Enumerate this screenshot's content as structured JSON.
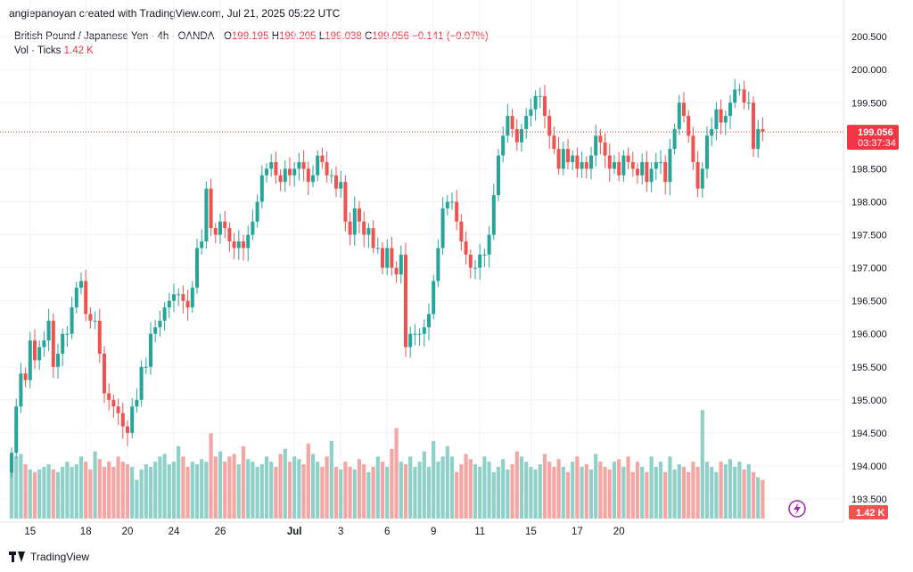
{
  "header": {
    "attribution": "angiepanoyan created with TradingView.com, Jul 21, 2025 05:22 UTC"
  },
  "legend": {
    "symbol": "British Pound / Japanese Yen · 4h · OANDA",
    "o_label": "O",
    "o_value": "199.195",
    "h_label": "H",
    "h_value": "199.205",
    "l_label": "L",
    "l_value": "199.038",
    "c_label": "C",
    "c_value": "199.056",
    "change": "−0.141 (−0.07%)",
    "vol_label": "Vol · Ticks",
    "vol_value": "1.42 K"
  },
  "footer": {
    "brand": "TradingView"
  },
  "colors": {
    "up": "#26a69a",
    "down": "#ef5350",
    "up_vol": "#8fd1c9",
    "down_vol": "#f4a6a3",
    "price_line": "#f23645",
    "flash": "#9c27b0"
  },
  "chart_data": {
    "type": "candlestick",
    "title": "British Pound / Japanese Yen · 4h · OANDA",
    "price_axis": {
      "ylim": [
        193.15,
        200.65
      ],
      "ticks": [
        "200.500",
        "200.000",
        "199.500",
        "199.000",
        "198.500",
        "198.000",
        "197.500",
        "197.000",
        "196.500",
        "196.000",
        "195.500",
        "195.000",
        "194.500",
        "194.000",
        "193.500"
      ]
    },
    "time_axis": {
      "ticks": [
        {
          "i": 4,
          "label": "15"
        },
        {
          "i": 16,
          "label": "18"
        },
        {
          "i": 25,
          "label": "20"
        },
        {
          "i": 35,
          "label": "24"
        },
        {
          "i": 45,
          "label": "26"
        },
        {
          "i": 61,
          "label": "Jul",
          "bold": true
        },
        {
          "i": 71,
          "label": "3"
        },
        {
          "i": 81,
          "label": "6"
        },
        {
          "i": 91,
          "label": "9"
        },
        {
          "i": 101,
          "label": "11"
        },
        {
          "i": 112,
          "label": "15"
        },
        {
          "i": 122,
          "label": "17"
        },
        {
          "i": 131,
          "label": "20"
        }
      ]
    },
    "last_price": "199.056",
    "countdown": "03:37:34",
    "volume_last": "1.42 K",
    "volume_max": 100,
    "closes": [
      194.2,
      194.9,
      195.4,
      195.3,
      195.9,
      195.6,
      195.8,
      195.9,
      196.2,
      195.5,
      195.7,
      196.0,
      196.0,
      196.4,
      196.7,
      196.8,
      196.3,
      196.2,
      196.2,
      195.7,
      195.1,
      195.0,
      194.9,
      194.8,
      194.6,
      194.5,
      194.9,
      195.0,
      195.5,
      195.5,
      196.0,
      196.1,
      196.2,
      196.4,
      196.5,
      196.6,
      196.6,
      196.5,
      196.4,
      196.7,
      197.3,
      197.4,
      198.2,
      197.6,
      197.5,
      197.7,
      197.6,
      197.4,
      197.3,
      197.4,
      197.3,
      197.5,
      197.7,
      198.0,
      198.4,
      198.5,
      198.6,
      198.4,
      198.3,
      198.5,
      198.4,
      198.5,
      198.6,
      198.5,
      198.3,
      198.4,
      198.7,
      198.6,
      198.4,
      198.4,
      198.2,
      198.3,
      197.7,
      197.5,
      197.9,
      197.7,
      197.5,
      197.6,
      197.3,
      197.3,
      197.0,
      197.3,
      197.0,
      196.9,
      197.2,
      195.8,
      196.0,
      196.0,
      196.0,
      196.1,
      196.3,
      196.8,
      197.3,
      197.9,
      198.0,
      198.0,
      197.7,
      197.4,
      197.2,
      197.0,
      197.0,
      197.2,
      197.2,
      197.5,
      198.1,
      198.7,
      199.0,
      199.3,
      199.1,
      198.9,
      199.1,
      199.3,
      199.4,
      199.6,
      199.6,
      199.3,
      199.0,
      198.8,
      198.5,
      198.8,
      198.6,
      198.7,
      198.5,
      198.6,
      198.5,
      198.7,
      199.0,
      198.9,
      198.7,
      198.5,
      198.6,
      198.4,
      198.7,
      198.6,
      198.5,
      198.4,
      198.6,
      198.3,
      198.5,
      198.6,
      198.6,
      198.3,
      198.8,
      199.1,
      199.5,
      199.3,
      199.0,
      198.6,
      198.2,
      198.5,
      199.0,
      199.1,
      199.4,
      199.2,
      199.3,
      199.5,
      199.7,
      199.7,
      199.5,
      199.5,
      198.8,
      199.1,
      199.06
    ],
    "volumes": [
      45,
      48,
      50,
      42,
      38,
      36,
      38,
      40,
      42,
      38,
      36,
      40,
      44,
      40,
      42,
      48,
      44,
      38,
      52,
      46,
      40,
      44,
      40,
      48,
      44,
      42,
      40,
      30,
      38,
      42,
      40,
      44,
      48,
      50,
      42,
      44,
      56,
      48,
      40,
      44,
      42,
      46,
      44,
      66,
      48,
      52,
      44,
      48,
      50,
      42,
      56,
      46,
      44,
      40,
      42,
      48,
      44,
      40,
      50,
      54,
      44,
      48,
      46,
      42,
      58,
      50,
      44,
      40,
      48,
      60,
      40,
      38,
      44,
      40,
      38,
      46,
      42,
      36,
      40,
      48,
      44,
      40,
      54,
      70,
      44,
      42,
      48,
      40,
      44,
      52,
      40,
      60,
      44,
      48,
      56,
      48,
      36,
      42,
      50,
      46,
      42,
      40,
      48,
      44,
      36,
      40,
      46,
      38,
      42,
      52,
      48,
      44,
      40,
      38,
      42,
      50,
      44,
      40,
      46,
      40,
      36,
      44,
      48,
      40,
      42,
      38,
      50,
      44,
      40,
      38,
      44,
      46,
      40,
      48,
      36,
      44,
      40,
      36,
      48,
      40,
      44,
      36,
      48,
      38,
      42,
      40,
      36,
      44,
      40,
      84,
      44,
      40,
      36,
      44,
      42,
      46,
      40,
      44,
      38,
      42,
      36,
      32,
      30,
      26
    ]
  }
}
